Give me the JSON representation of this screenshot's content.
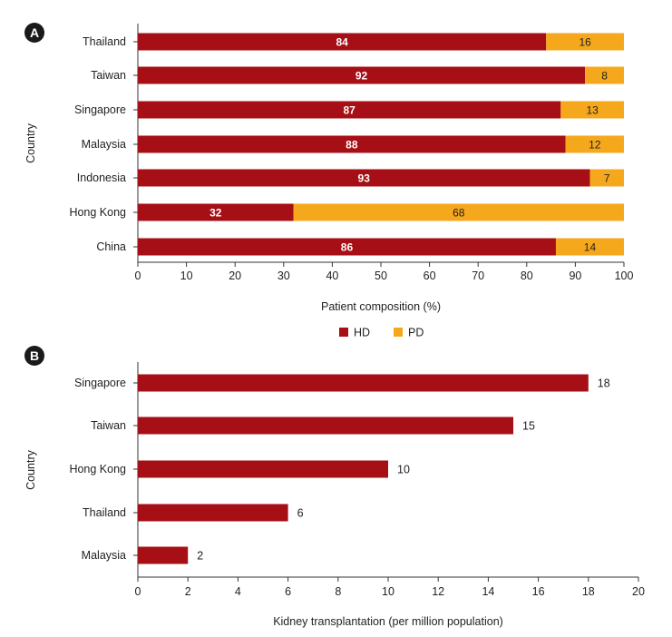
{
  "colors": {
    "hd": "#a50f15",
    "pd": "#f5a81c",
    "axis": "#333333",
    "text": "#222222",
    "badge": "#1a1a1a"
  },
  "chart_data": [
    {
      "panel": "A",
      "type": "bar",
      "orientation": "horizontal",
      "stacked": true,
      "ylabel": "Country",
      "xlabel": "Patient composition (%)",
      "xlim": [
        0,
        100
      ],
      "xticks": [
        "0",
        "10",
        "20",
        "30",
        "40",
        "50",
        "60",
        "70",
        "80",
        "90",
        "100"
      ],
      "categories": [
        "Thailand",
        "Taiwan",
        "Singapore",
        "Malaysia",
        "Indonesia",
        "Hong Kong",
        "China"
      ],
      "series": [
        {
          "name": "HD",
          "values": [
            84,
            92,
            87,
            88,
            93,
            32,
            86
          ]
        },
        {
          "name": "PD",
          "values": [
            16,
            8,
            13,
            12,
            7,
            68,
            14
          ]
        }
      ],
      "legend": [
        "HD",
        "PD"
      ],
      "legend_position": "bottom-center"
    },
    {
      "panel": "B",
      "type": "bar",
      "orientation": "horizontal",
      "ylabel": "Country",
      "xlabel": "Kidney transplantation (per million population)",
      "xlim": [
        0,
        20
      ],
      "xticks": [
        "0",
        "2",
        "4",
        "6",
        "8",
        "10",
        "12",
        "14",
        "16",
        "18",
        "20"
      ],
      "categories": [
        "Singapore",
        "Taiwan",
        "Hong Kong",
        "Thailand",
        "Malaysia"
      ],
      "series": [
        {
          "name": "Kidney transplantation",
          "values": [
            18,
            15,
            10,
            6,
            2
          ]
        }
      ]
    }
  ]
}
